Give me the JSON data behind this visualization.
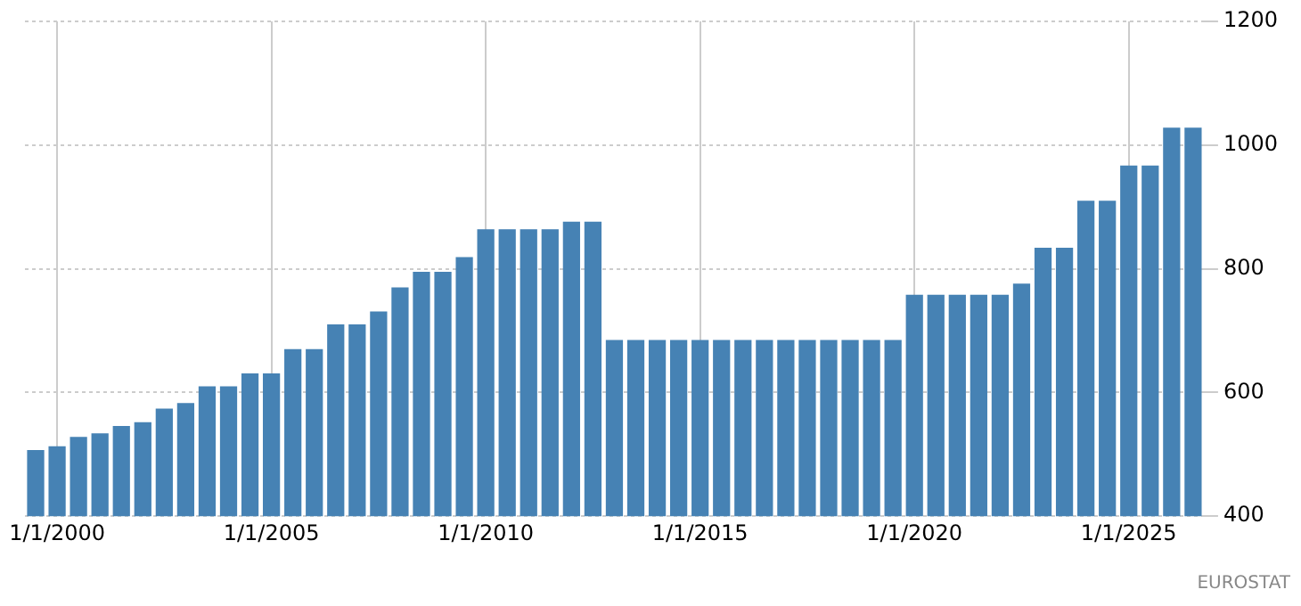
{
  "chart_data": {
    "type": "bar",
    "categories": [
      null,
      "1/1/2000",
      null,
      null,
      null,
      null,
      null,
      null,
      null,
      null,
      null,
      "1/1/2005",
      null,
      null,
      null,
      null,
      null,
      null,
      null,
      null,
      null,
      "1/1/2010",
      null,
      null,
      null,
      null,
      null,
      null,
      null,
      null,
      null,
      "1/1/2015",
      null,
      null,
      null,
      null,
      null,
      null,
      null,
      null,
      null,
      "1/1/2020",
      null,
      null,
      null,
      null,
      null,
      null,
      null,
      null,
      null,
      "1/1/2025",
      null,
      null,
      null
    ],
    "values": [
      507,
      513,
      528,
      534,
      546,
      552,
      574,
      583,
      610,
      610,
      631,
      631,
      670,
      670,
      710,
      710,
      731,
      770,
      795,
      795,
      819,
      864,
      864,
      864,
      864,
      876,
      876,
      685,
      685,
      685,
      685,
      685,
      685,
      685,
      685,
      685,
      685,
      685,
      685,
      685,
      685,
      758,
      758,
      758,
      758,
      758,
      776,
      834,
      834,
      910,
      910,
      967,
      967,
      1028,
      1028
    ],
    "color": "#4682b4",
    "ylim": [
      400,
      1200
    ],
    "yticks": [
      400,
      600,
      800,
      1000,
      1200
    ],
    "grid": true,
    "legend": false,
    "annotations": [
      "EUROSTAT"
    ]
  }
}
